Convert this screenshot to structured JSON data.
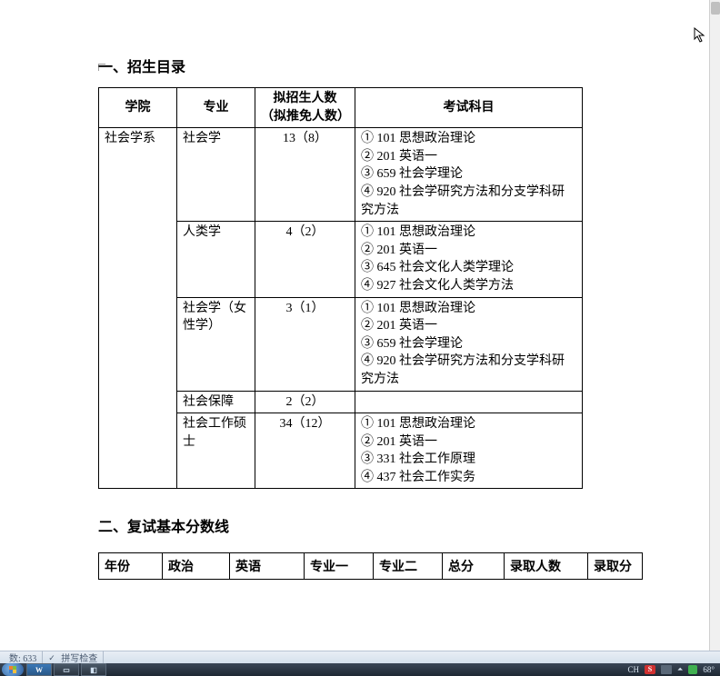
{
  "section1": {
    "title": "一、招生目录"
  },
  "table1": {
    "headers": {
      "dept": "学院",
      "major": "专业",
      "num": "拟招生人数（拟推免人数）",
      "subjects": "考试科目"
    },
    "dept": "社会学系",
    "rows": [
      {
        "major": "社会学",
        "num": "13（8）",
        "subjects": [
          "① 101 思想政治理论",
          "② 201 英语一",
          "③ 659 社会学理论",
          "④ 920 社会学研究方法和分支学科研究方法"
        ]
      },
      {
        "major": "人类学",
        "num": "4（2）",
        "subjects": [
          "① 101 思想政治理论",
          "② 201 英语一",
          "③ 645 社会文化人类学理论",
          "④ 927 社会文化人类学方法"
        ]
      },
      {
        "major": "社会学（女性学）",
        "num": "3（1）",
        "subjects": [
          "① 101 思想政治理论",
          "② 201 英语一",
          "③ 659 社会学理论",
          "④ 920 社会学研究方法和分支学科研究方法"
        ]
      },
      {
        "major": "社会保障",
        "num": "2（2）",
        "subjects": []
      },
      {
        "major": "社会工作硕士",
        "num": "34（12）",
        "subjects": [
          "① 101 思想政治理论",
          "② 201 英语一",
          "③ 331 社会工作原理",
          "④ 437 社会工作实务"
        ]
      }
    ]
  },
  "section2": {
    "title": "二、复试基本分数线"
  },
  "table2": {
    "headers": [
      "年份",
      "政治",
      "英语",
      "专业一",
      "专业二",
      "总分",
      "录取人数",
      "录取分"
    ]
  },
  "statusbar": {
    "wordcount_label": "数: 633",
    "spellcheck_label": "拼写检查"
  },
  "tray": {
    "ime": "CH",
    "s": "S",
    "temp": "68°"
  },
  "colors": {
    "page_bg": "#ffffff",
    "border": "#000000",
    "status_bg_top": "#e8eef5",
    "status_bg_bot": "#d5e0ec",
    "taskbar_top": "#3a4656",
    "taskbar_bot": "#1e2833"
  }
}
